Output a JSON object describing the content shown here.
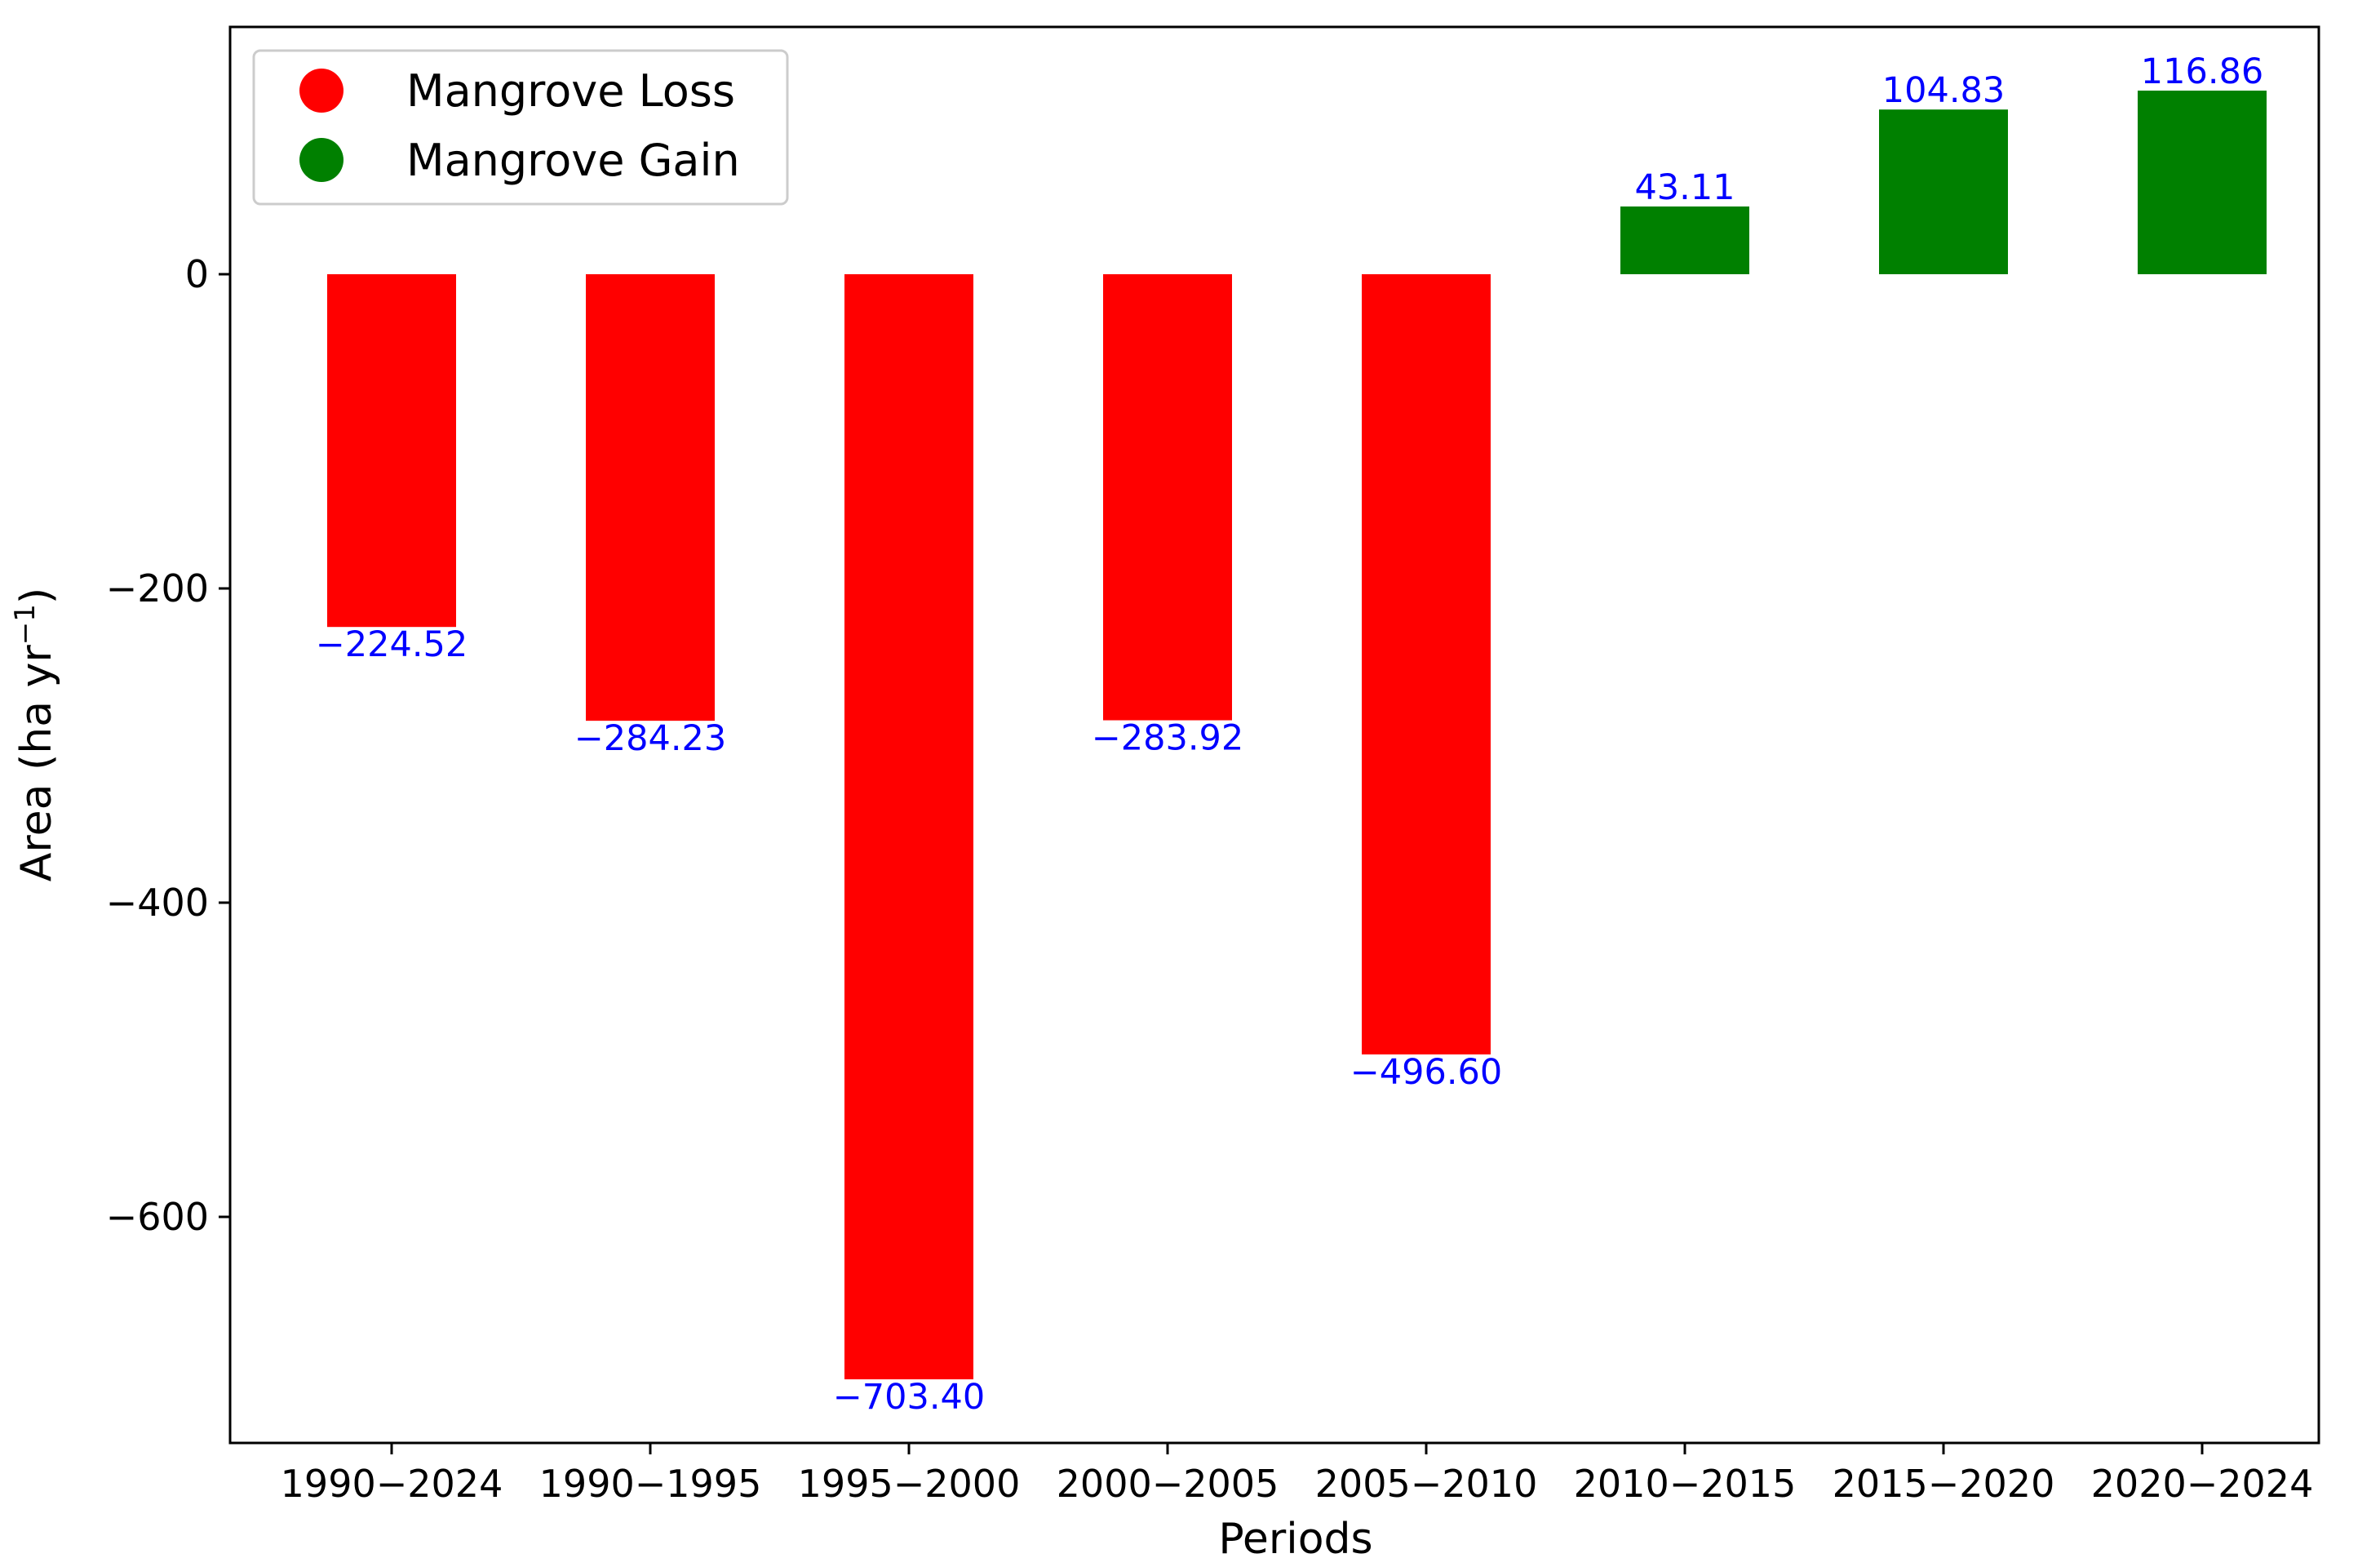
{
  "chart_data": {
    "type": "bar",
    "title": "",
    "xlabel": "Periods",
    "ylabel": "Area (ha yr",
    "ylabel_superscript": "−1",
    "ylabel_close": ")",
    "categories": [
      "1990−2024",
      "1990−1995",
      "1995−2000",
      "2000−2005",
      "2005−2010",
      "2010−2015",
      "2015−2020",
      "2020−2024"
    ],
    "values": [
      -224.52,
      -284.23,
      -703.4,
      -283.92,
      -496.6,
      43.11,
      104.83,
      116.86
    ],
    "value_labels": [
      "−224.52",
      "−284.23",
      "−703.40",
      "−283.92",
      "−496.60",
      "43.11",
      "104.83",
      "116.86"
    ],
    "ylim": [
      -742,
      158
    ],
    "yticks": [
      0,
      -200,
      -400,
      -600
    ],
    "ytick_labels": [
      "0",
      "−200",
      "−400",
      "−600"
    ],
    "grid": false,
    "legend": {
      "position": "top-left",
      "entries": [
        {
          "label": "Mangrove Loss",
          "color": "#ff0000"
        },
        {
          "label": "Mangrove Gain",
          "color": "#008000"
        }
      ]
    },
    "colors": {
      "loss": "#ff0000",
      "gain": "#008000",
      "label": "#0000ff"
    }
  }
}
